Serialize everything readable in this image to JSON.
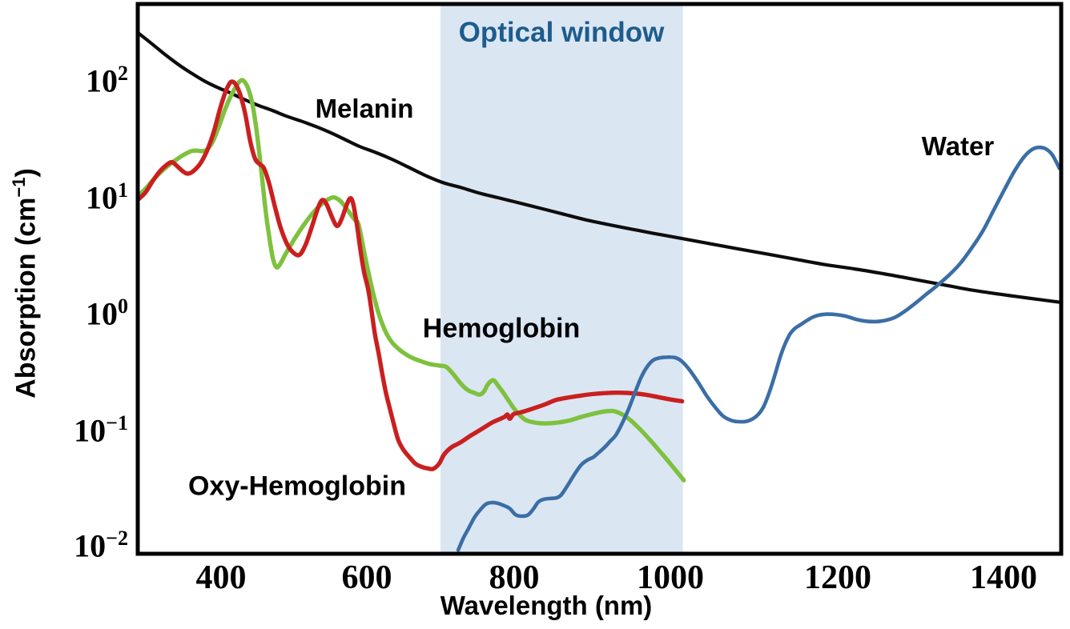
{
  "chart_data": {
    "type": "line",
    "title": "",
    "xlabel": "Wavelength (nm)",
    "ylabel": "Absorption (cm⁻¹)",
    "ylabel_parts": {
      "pre": "Absorption (cm",
      "sup": "−1",
      "post": ")"
    },
    "x_axis": {
      "scale": "linear",
      "range_nm": [
        286,
        1470
      ],
      "ticks": [
        400,
        600,
        800,
        1000,
        1200,
        1400
      ]
    },
    "y_axis": {
      "scale": "log10",
      "range": [
        0.01,
        450
      ],
      "ticks": [
        {
          "base": "10",
          "exp": "2"
        },
        {
          "base": "10",
          "exp": "1"
        },
        {
          "base": "10",
          "exp": "0"
        },
        {
          "base": "10",
          "exp": "−1"
        },
        {
          "base": "10",
          "exp": "−2"
        }
      ]
    },
    "optical_window": {
      "label": "Optical window",
      "range_nm": [
        700,
        1015
      ],
      "band_color": "#dbe6f3",
      "label_color": "#1d5c8d"
    },
    "legend_position": "inline-annotations",
    "grid": false,
    "series": [
      {
        "name": "Melanin",
        "color": "#0d0d0d",
        "points": [
          [
            287,
            252
          ],
          [
            305,
            205
          ],
          [
            322,
            168
          ],
          [
            340,
            138
          ],
          [
            358,
            116
          ],
          [
            376,
            99
          ],
          [
            394,
            87
          ],
          [
            412,
            78
          ],
          [
            430,
            69
          ],
          [
            450,
            61
          ],
          [
            470,
            55
          ],
          [
            490,
            49
          ],
          [
            510,
            44.5
          ],
          [
            530,
            40
          ],
          [
            550,
            35.5
          ],
          [
            570,
            31
          ],
          [
            590,
            27
          ],
          [
            612,
            24
          ],
          [
            634,
            21
          ],
          [
            656,
            18
          ],
          [
            680,
            15.2
          ],
          [
            704,
            13.2
          ],
          [
            728,
            12
          ],
          [
            752,
            10.8
          ],
          [
            776,
            9.9
          ],
          [
            800,
            9.1
          ],
          [
            830,
            8.1
          ],
          [
            860,
            7.2
          ],
          [
            890,
            6.4
          ],
          [
            920,
            5.8
          ],
          [
            950,
            5.3
          ],
          [
            980,
            4.85
          ],
          [
            1010,
            4.45
          ],
          [
            1045,
            4.0
          ],
          [
            1080,
            3.6
          ],
          [
            1115,
            3.25
          ],
          [
            1150,
            2.92
          ],
          [
            1185,
            2.63
          ],
          [
            1220,
            2.42
          ],
          [
            1255,
            2.2
          ],
          [
            1290,
            1.98
          ],
          [
            1325,
            1.78
          ],
          [
            1360,
            1.6
          ],
          [
            1395,
            1.47
          ],
          [
            1430,
            1.36
          ],
          [
            1470,
            1.25
          ]
        ]
      },
      {
        "name": "Hemoglobin",
        "color": "#7ec13e",
        "points": [
          [
            284,
            9.8
          ],
          [
            297,
            11.8
          ],
          [
            308,
            14.2
          ],
          [
            319,
            16.6
          ],
          [
            330,
            19
          ],
          [
            341,
            21.3
          ],
          [
            351,
            23.3
          ],
          [
            360,
            24.7
          ],
          [
            367,
            24.9
          ],
          [
            374,
            24.6
          ],
          [
            381,
            25.5
          ],
          [
            389,
            30
          ],
          [
            397,
            40
          ],
          [
            405,
            55
          ],
          [
            413,
            72
          ],
          [
            421,
            89
          ],
          [
            427,
            99
          ],
          [
            432,
            97
          ],
          [
            438,
            82
          ],
          [
            444,
            58
          ],
          [
            450,
            32
          ],
          [
            456,
            15
          ],
          [
            461,
            7.8
          ],
          [
            466,
            4.6
          ],
          [
            471,
            3.0
          ],
          [
            476,
            2.5
          ],
          [
            481,
            2.65
          ],
          [
            488,
            3.2
          ],
          [
            496,
            3.9
          ],
          [
            505,
            4.8
          ],
          [
            514,
            5.8
          ],
          [
            523,
            6.9
          ],
          [
            532,
            8.0
          ],
          [
            541,
            9.0
          ],
          [
            548,
            9.6
          ],
          [
            554,
            9.9
          ],
          [
            560,
            9.6
          ],
          [
            566,
            8.9
          ],
          [
            573,
            7.8
          ],
          [
            580,
            6.8
          ],
          [
            585,
            6.2
          ],
          [
            589,
            5.7
          ],
          [
            598,
            3.0
          ],
          [
            608,
            1.55
          ],
          [
            618,
            0.92
          ],
          [
            630,
            0.62
          ],
          [
            643,
            0.5
          ],
          [
            658,
            0.43
          ],
          [
            672,
            0.395
          ],
          [
            686,
            0.37
          ],
          [
            698,
            0.36
          ],
          [
            708,
            0.35
          ],
          [
            718,
            0.3
          ],
          [
            728,
            0.25
          ],
          [
            737,
            0.222
          ],
          [
            746,
            0.21
          ],
          [
            753,
            0.203
          ],
          [
            759,
            0.216
          ],
          [
            764,
            0.247
          ],
          [
            769,
            0.266
          ],
          [
            773,
            0.267
          ],
          [
            779,
            0.238
          ],
          [
            785,
            0.212
          ],
          [
            793,
            0.178
          ],
          [
            803,
            0.145
          ],
          [
            814,
            0.124
          ],
          [
            826,
            0.117
          ],
          [
            841,
            0.115
          ],
          [
            856,
            0.117
          ],
          [
            871,
            0.122
          ],
          [
            886,
            0.131
          ],
          [
            901,
            0.139
          ],
          [
            914,
            0.145
          ],
          [
            926,
            0.147
          ],
          [
            936,
            0.14
          ],
          [
            946,
            0.127
          ],
          [
            956,
            0.111
          ],
          [
            966,
            0.095
          ],
          [
            976,
            0.08
          ],
          [
            986,
            0.067
          ],
          [
            996,
            0.056
          ],
          [
            1006,
            0.046
          ],
          [
            1016,
            0.0375
          ]
        ]
      },
      {
        "name": "Oxy-Hemoglobin",
        "color": "#c9201f",
        "points": [
          [
            284,
            9.2
          ],
          [
            296,
            10.8
          ],
          [
            306,
            13.5
          ],
          [
            316,
            16.5
          ],
          [
            326,
            18.9
          ],
          [
            333,
            19.8
          ],
          [
            340,
            18.3
          ],
          [
            348,
            16.5
          ],
          [
            355,
            15.8
          ],
          [
            363,
            16.8
          ],
          [
            372,
            19.5
          ],
          [
            381,
            25
          ],
          [
            390,
            36
          ],
          [
            398,
            55
          ],
          [
            405,
            76
          ],
          [
            411,
            92
          ],
          [
            415,
            97
          ],
          [
            420,
            92
          ],
          [
            426,
            76
          ],
          [
            433,
            52
          ],
          [
            440,
            30
          ],
          [
            447,
            21
          ],
          [
            454,
            18.9
          ],
          [
            459,
            17.5
          ],
          [
            466,
            13
          ],
          [
            474,
            8.2
          ],
          [
            482,
            5.4
          ],
          [
            491,
            3.9
          ],
          [
            500,
            3.3
          ],
          [
            508,
            3.2
          ],
          [
            516,
            3.9
          ],
          [
            524,
            5.4
          ],
          [
            531,
            7.4
          ],
          [
            536,
            8.9
          ],
          [
            540,
            9.4
          ],
          [
            545,
            8.6
          ],
          [
            551,
            7.0
          ],
          [
            557,
            5.8
          ],
          [
            561,
            5.7
          ],
          [
            566,
            6.6
          ],
          [
            572,
            8.4
          ],
          [
            577,
            9.7
          ],
          [
            581,
            8.9
          ],
          [
            586,
            6.0
          ],
          [
            591,
            3.6
          ],
          [
            596,
            2.3
          ],
          [
            602,
            1.6
          ],
          [
            607,
            1.0
          ],
          [
            611,
            0.67
          ],
          [
            616,
            0.46
          ],
          [
            621,
            0.305
          ],
          [
            626,
            0.21
          ],
          [
            632,
            0.148
          ],
          [
            638,
            0.105
          ],
          [
            643,
            0.082
          ],
          [
            650,
            0.068
          ],
          [
            658,
            0.059
          ],
          [
            666,
            0.052
          ],
          [
            674,
            0.049
          ],
          [
            682,
            0.0475
          ],
          [
            690,
            0.047
          ],
          [
            698,
            0.052
          ],
          [
            705,
            0.0625
          ],
          [
            715,
            0.072
          ],
          [
            727,
            0.079
          ],
          [
            738,
            0.088
          ],
          [
            749,
            0.097
          ],
          [
            760,
            0.107
          ],
          [
            770,
            0.117
          ],
          [
            780,
            0.125
          ],
          [
            787,
            0.131
          ],
          [
            791,
            0.137
          ],
          [
            794,
            0.126
          ],
          [
            799,
            0.138
          ],
          [
            806,
            0.142
          ],
          [
            813,
            0.146
          ],
          [
            825,
            0.155
          ],
          [
            840,
            0.168
          ],
          [
            854,
            0.183
          ],
          [
            870,
            0.192
          ],
          [
            885,
            0.199
          ],
          [
            900,
            0.205
          ],
          [
            915,
            0.209
          ],
          [
            930,
            0.211
          ],
          [
            945,
            0.21
          ],
          [
            960,
            0.206
          ],
          [
            975,
            0.199
          ],
          [
            990,
            0.19
          ],
          [
            1003,
            0.183
          ],
          [
            1014,
            0.178
          ]
        ]
      },
      {
        "name": "Water",
        "color": "#3b6ea5",
        "points": [
          [
            724,
            0.0095
          ],
          [
            731,
            0.012
          ],
          [
            738,
            0.0145
          ],
          [
            746,
            0.018
          ],
          [
            754,
            0.021
          ],
          [
            762,
            0.0235
          ],
          [
            770,
            0.0242
          ],
          [
            778,
            0.0238
          ],
          [
            786,
            0.0228
          ],
          [
            794,
            0.0215
          ],
          [
            802,
            0.019
          ],
          [
            810,
            0.0185
          ],
          [
            818,
            0.019
          ],
          [
            825,
            0.0215
          ],
          [
            831,
            0.0245
          ],
          [
            838,
            0.0258
          ],
          [
            846,
            0.0262
          ],
          [
            854,
            0.0265
          ],
          [
            860,
            0.028
          ],
          [
            868,
            0.0335
          ],
          [
            877,
            0.042
          ],
          [
            886,
            0.051
          ],
          [
            894,
            0.056
          ],
          [
            901,
            0.059
          ],
          [
            908,
            0.0645
          ],
          [
            916,
            0.072
          ],
          [
            923,
            0.081
          ],
          [
            930,
            0.091
          ],
          [
            938,
            0.114
          ],
          [
            946,
            0.15
          ],
          [
            954,
            0.205
          ],
          [
            962,
            0.28
          ],
          [
            970,
            0.35
          ],
          [
            978,
            0.4
          ],
          [
            986,
            0.418
          ],
          [
            996,
            0.425
          ],
          [
            1006,
            0.42
          ],
          [
            1014,
            0.39
          ],
          [
            1023,
            0.33
          ],
          [
            1033,
            0.26
          ],
          [
            1043,
            0.2
          ],
          [
            1053,
            0.16
          ],
          [
            1063,
            0.133
          ],
          [
            1073,
            0.122
          ],
          [
            1083,
            0.119
          ],
          [
            1093,
            0.121
          ],
          [
            1103,
            0.133
          ],
          [
            1111,
            0.158
          ],
          [
            1118,
            0.21
          ],
          [
            1125,
            0.3
          ],
          [
            1131,
            0.42
          ],
          [
            1137,
            0.55
          ],
          [
            1143,
            0.67
          ],
          [
            1149,
            0.75
          ],
          [
            1155,
            0.8
          ],
          [
            1161,
            0.855
          ],
          [
            1169,
            0.925
          ],
          [
            1177,
            0.97
          ],
          [
            1187,
            0.99
          ],
          [
            1197,
            0.985
          ],
          [
            1209,
            0.955
          ],
          [
            1221,
            0.9
          ],
          [
            1233,
            0.865
          ],
          [
            1245,
            0.855
          ],
          [
            1257,
            0.875
          ],
          [
            1269,
            0.93
          ],
          [
            1281,
            1.05
          ],
          [
            1293,
            1.22
          ],
          [
            1306,
            1.45
          ],
          [
            1319,
            1.72
          ],
          [
            1333,
            2.1
          ],
          [
            1347,
            2.65
          ],
          [
            1361,
            3.6
          ],
          [
            1375,
            5.1
          ],
          [
            1389,
            7.9
          ],
          [
            1401,
            11.5
          ],
          [
            1413,
            16.5
          ],
          [
            1425,
            22
          ],
          [
            1435,
            25.5
          ],
          [
            1443,
            26.5
          ],
          [
            1451,
            25.8
          ],
          [
            1459,
            23
          ],
          [
            1468,
            17.5
          ]
        ]
      }
    ]
  }
}
